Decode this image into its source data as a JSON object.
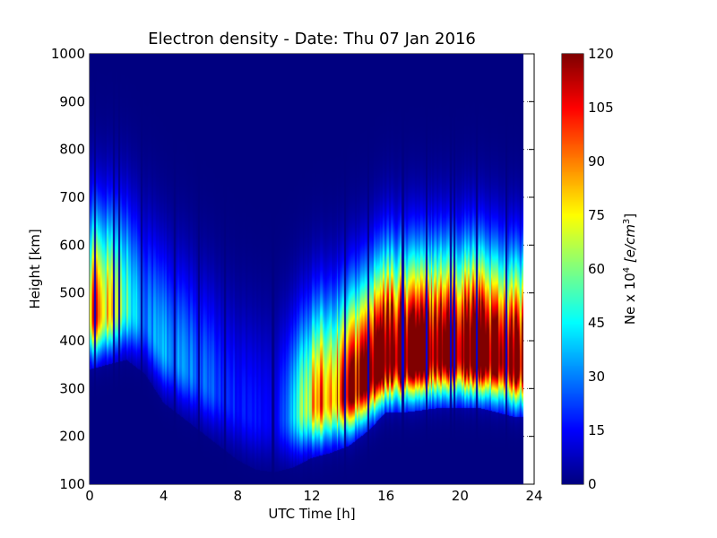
{
  "chart_data": {
    "type": "heatmap",
    "title": "Electron density - Date: Thu 07 Jan 2016",
    "xlabel": "UTC Time [h]",
    "ylabel": "Height [km]",
    "xlim": [
      0,
      24
    ],
    "ylim": [
      100,
      1000
    ],
    "x_data_extent": [
      0,
      23.5
    ],
    "xticks": [
      0,
      4,
      8,
      12,
      16,
      20,
      24
    ],
    "yticks": [
      100,
      200,
      300,
      400,
      500,
      600,
      700,
      800,
      900,
      1000
    ],
    "grid": true,
    "grid_style": "dotted",
    "colormap": "jet",
    "colorbar": {
      "label": "Ne x 10",
      "label_exponent": "4",
      "unit": "[e/cm",
      "unit_exponent": "3",
      "unit_close": "]",
      "range": [
        0,
        120
      ],
      "ticks": [
        0,
        15,
        30,
        45,
        60,
        75,
        90,
        105,
        120
      ]
    },
    "profiles": [
      {
        "t": 0,
        "peak_height": 450,
        "peak_value": 98
      },
      {
        "t": 1,
        "peak_height": 460,
        "peak_value": 82
      },
      {
        "t": 2,
        "peak_height": 470,
        "peak_value": 52
      },
      {
        "t": 3,
        "peak_height": 440,
        "peak_value": 32
      },
      {
        "t": 4,
        "peak_height": 380,
        "peak_value": 35
      },
      {
        "t": 5,
        "peak_height": 350,
        "peak_value": 30
      },
      {
        "t": 6,
        "peak_height": 320,
        "peak_value": 27
      },
      {
        "t": 7,
        "peak_height": 290,
        "peak_value": 22
      },
      {
        "t": 8,
        "peak_height": 260,
        "peak_value": 18
      },
      {
        "t": 9,
        "peak_height": 240,
        "peak_value": 16
      },
      {
        "t": 10,
        "peak_height": 235,
        "peak_value": 14
      },
      {
        "t": 11,
        "peak_height": 245,
        "peak_value": 38
      },
      {
        "t": 12,
        "peak_height": 265,
        "peak_value": 82
      },
      {
        "t": 13,
        "peak_height": 275,
        "peak_value": 95
      },
      {
        "t": 14,
        "peak_height": 290,
        "peak_value": 108
      },
      {
        "t": 15,
        "peak_height": 320,
        "peak_value": 125
      },
      {
        "t": 16,
        "peak_height": 360,
        "peak_value": 140
      },
      {
        "t": 17,
        "peak_height": 360,
        "peak_value": 140
      },
      {
        "t": 18,
        "peak_height": 365,
        "peak_value": 140
      },
      {
        "t": 19,
        "peak_height": 370,
        "peak_value": 140
      },
      {
        "t": 20,
        "peak_height": 370,
        "peak_value": 140
      },
      {
        "t": 21,
        "peak_height": 370,
        "peak_value": 140
      },
      {
        "t": 22,
        "peak_height": 360,
        "peak_value": 135
      },
      {
        "t": 23,
        "peak_height": 350,
        "peak_value": 128
      },
      {
        "t": 23.5,
        "peak_height": 350,
        "peak_value": 125
      }
    ],
    "dropout_bands_h": [
      0.3,
      1.3,
      1.6,
      2.8,
      4.6,
      5.9,
      7.3,
      9.9,
      13.8,
      15.05,
      16.9,
      18.2,
      19.5,
      19.7,
      20.9,
      22.5
    ]
  }
}
